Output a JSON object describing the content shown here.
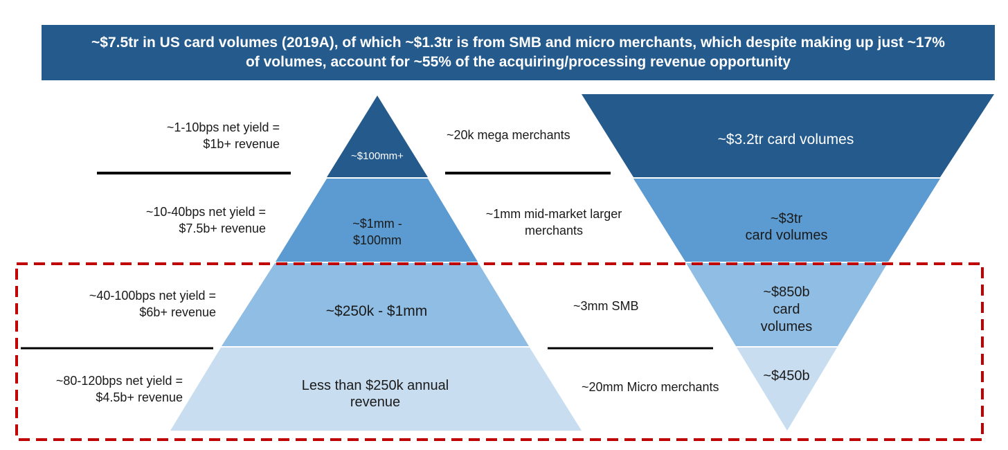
{
  "header": {
    "line1": "~$7.5tr in US card volumes (2019A), of which ~$1.3tr is from SMB and micro merchants, which despite making up just ~17%",
    "line2": "of volumes, account for ~55% of the acquiring/processing revenue opportunity"
  },
  "tiers": [
    {
      "yield": [
        "~1-10bps net yield =",
        "$1b+ revenue"
      ],
      "pyramid": [
        "~$100mm+"
      ],
      "merchants": [
        "~20k mega merchants"
      ],
      "volume": [
        "~$3.2tr card volumes"
      ]
    },
    {
      "yield": [
        "~10-40bps net yield =",
        "$7.5b+ revenue"
      ],
      "pyramid": [
        "~$1mm -",
        "$100mm"
      ],
      "merchants": [
        "~1mm mid-market larger",
        "merchants"
      ],
      "volume": [
        "~$3tr",
        "card volumes"
      ]
    },
    {
      "yield": [
        "~40-100bps net yield =",
        "$6b+ revenue"
      ],
      "pyramid": [
        "~$250k - $1mm"
      ],
      "merchants": [
        "~3mm SMB"
      ],
      "volume": [
        "~$850b",
        "card",
        "volumes"
      ]
    },
    {
      "yield": [
        "~80-120bps net yield =",
        "$4.5b+ revenue"
      ],
      "pyramid": [
        "Less than $250k annual",
        "revenue"
      ],
      "merchants": [
        "~20mm Micro merchants"
      ],
      "volume": [
        "~$450b"
      ]
    }
  ],
  "colors": {
    "banner": "#245a8c",
    "tier_dark": "#245a8c",
    "tier_mid": "#5b9bd1",
    "tier_light": "#90bde3",
    "tier_pale": "#c8ddf0",
    "highlight_box": "#c00000"
  }
}
